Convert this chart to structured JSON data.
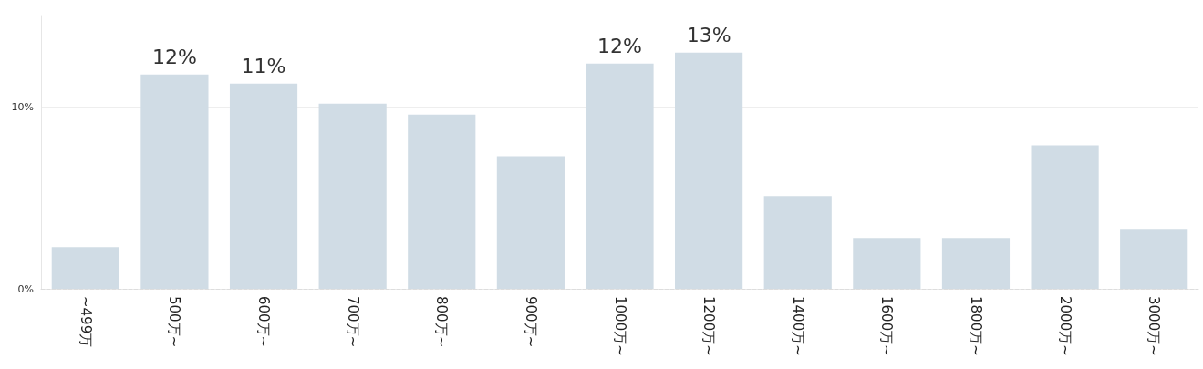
{
  "chart_data": {
    "type": "bar",
    "categories": [
      "~499万",
      "500万~",
      "600万~",
      "700万~",
      "800万~",
      "900万~",
      "1000万~",
      "1200万~",
      "1400万~",
      "1600万~",
      "1800万~",
      "2000万~",
      "3000万~"
    ],
    "values": [
      2.3,
      11.8,
      11.3,
      10.2,
      9.6,
      7.3,
      12.4,
      13.0,
      5.1,
      2.8,
      2.8,
      7.9,
      3.3
    ],
    "value_labels": [
      null,
      "12%",
      "11%",
      null,
      null,
      null,
      "12%",
      "13%",
      null,
      null,
      null,
      null,
      null
    ],
    "color": "#d0dce5",
    "ylim": [
      0,
      15
    ],
    "yticks": [
      {
        "value": 0,
        "label": "0%"
      },
      {
        "value": 10,
        "label": "10%"
      }
    ],
    "grid": "y"
  }
}
